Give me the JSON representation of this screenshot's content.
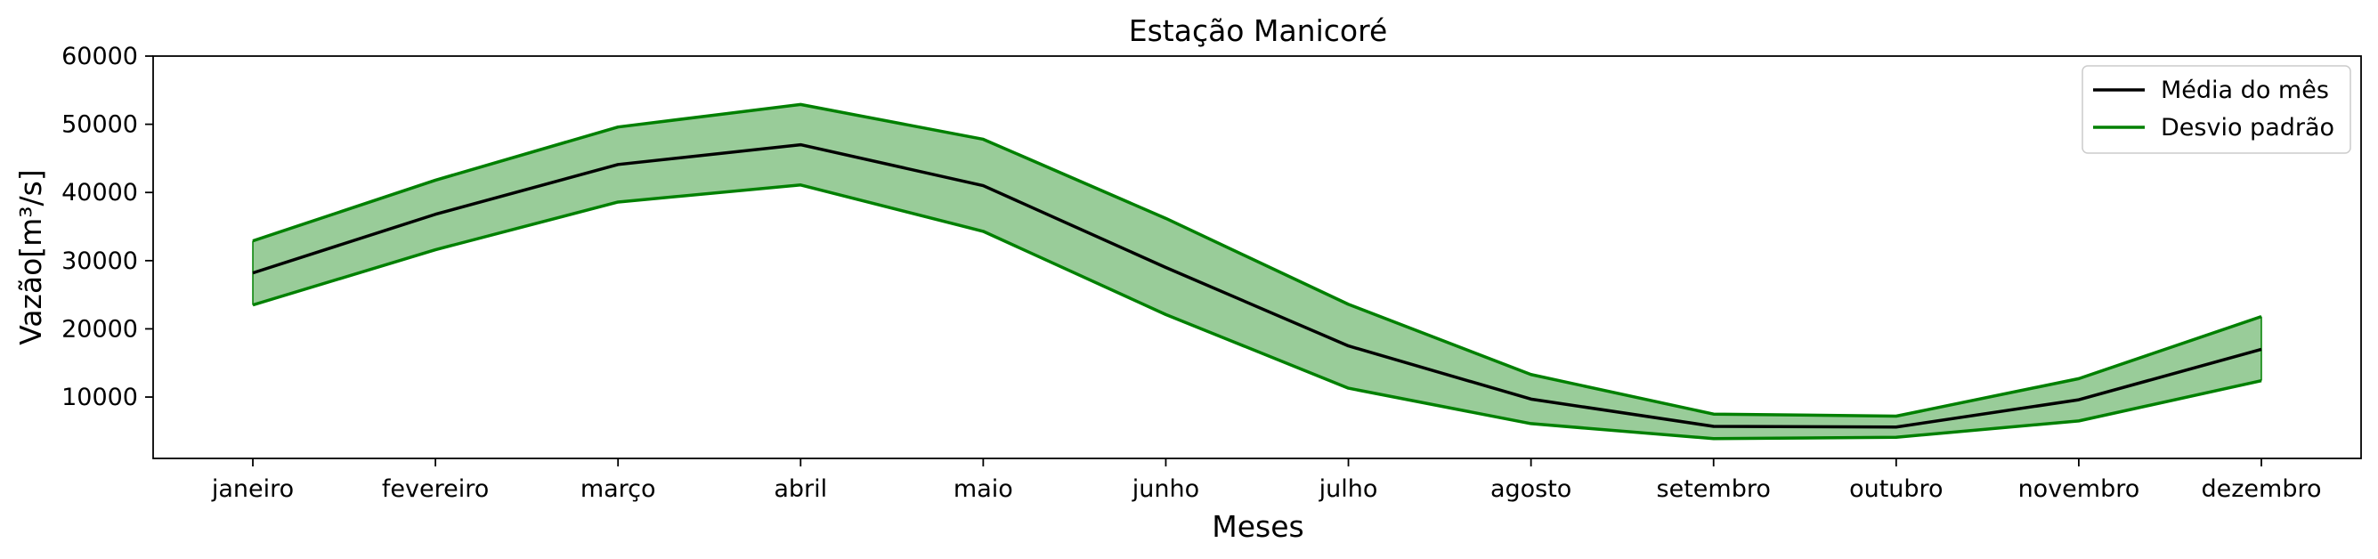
{
  "chart_data": {
    "type": "line",
    "title": "Estação Manicoré",
    "xlabel": "Meses",
    "ylabel": "Vazão[m³/s]",
    "categories": [
      "janeiro",
      "fevereiro",
      "março",
      "abril",
      "maio",
      "junho",
      "julho",
      "agosto",
      "setembro",
      "outubro",
      "novembro",
      "dezembro"
    ],
    "ylim": [
      1000,
      60000
    ],
    "yticks": [
      10000,
      20000,
      30000,
      40000,
      50000,
      60000
    ],
    "grid": false,
    "legend_position": "top-right",
    "series": [
      {
        "name": "Média do mês",
        "color": "#000000",
        "values": [
          28200,
          36800,
          44100,
          47000,
          41000,
          29000,
          17500,
          9700,
          5700,
          5600,
          9600,
          17000
        ]
      },
      {
        "name": "Desvio padrão",
        "color": "#008000",
        "fill_color": "#99cc99",
        "upper": [
          32900,
          41800,
          49600,
          52900,
          47800,
          36200,
          23600,
          13300,
          7500,
          7200,
          12700,
          21800
        ],
        "lower": [
          23500,
          31600,
          38600,
          41100,
          34300,
          22100,
          11300,
          6100,
          3900,
          4100,
          6500,
          12400
        ]
      }
    ]
  }
}
